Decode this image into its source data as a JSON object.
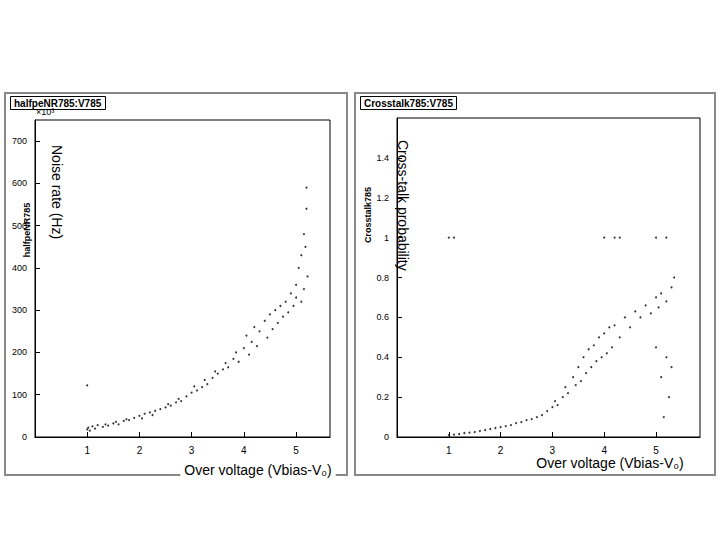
{
  "chart_data": [
    {
      "type": "scatter",
      "title": "halfpeNR785:V785",
      "ylabel": "halfpeNR785",
      "annotations": [
        "×10³",
        "Noise rate (Hz)",
        "Over voltage (Vbias-V₀)"
      ],
      "color": "#000000",
      "marker": "dot",
      "grid": false,
      "xlim": [
        0,
        5.65
      ],
      "xticks": [
        1,
        2,
        3,
        4,
        5
      ],
      "ylim": [
        0,
        750
      ],
      "yticks": [
        0,
        100,
        200,
        300,
        400,
        500,
        600,
        700
      ],
      "x": [
        1.0,
        1.02,
        1.05,
        1.1,
        1.15,
        1.2,
        1.3,
        1.35,
        1.4,
        1.5,
        1.55,
        1.6,
        1.7,
        1.75,
        1.8,
        1.9,
        2.0,
        2.05,
        2.1,
        2.2,
        2.25,
        2.3,
        2.4,
        2.5,
        2.55,
        2.6,
        2.7,
        2.75,
        2.8,
        2.9,
        3.0,
        3.05,
        3.1,
        3.2,
        3.25,
        3.3,
        3.4,
        3.45,
        3.5,
        3.6,
        3.65,
        3.7,
        3.8,
        3.85,
        3.9,
        4.0,
        4.05,
        4.1,
        4.15,
        4.2,
        4.25,
        4.3,
        4.4,
        4.45,
        4.5,
        4.55,
        4.6,
        4.65,
        4.7,
        4.75,
        4.8,
        4.85,
        4.9,
        4.95,
        5.0,
        5.0,
        5.05,
        5.1,
        5.1,
        5.15,
        5.15,
        5.2,
        5.2,
        5.18,
        5.22,
        1.0
      ],
      "values": [
        18,
        22,
        15,
        25,
        20,
        28,
        24,
        30,
        27,
        32,
        36,
        30,
        38,
        42,
        40,
        45,
        50,
        44,
        55,
        58,
        52,
        62,
        66,
        70,
        78,
        74,
        82,
        90,
        85,
        96,
        105,
        120,
        110,
        118,
        135,
        125,
        140,
        155,
        150,
        160,
        175,
        165,
        185,
        200,
        178,
        210,
        240,
        195,
        225,
        260,
        215,
        250,
        275,
        235,
        290,
        255,
        300,
        270,
        310,
        285,
        320,
        295,
        340,
        310,
        330,
        360,
        400,
        320,
        430,
        350,
        480,
        540,
        590,
        450,
        380,
        122
      ]
    },
    {
      "type": "scatter",
      "title": "Crosstalk785:V785",
      "ylabel": "Crosstalk785",
      "annotations": [
        "Cross-talk probability",
        "Over voltage (Vbias-V₀)"
      ],
      "color": "#000000",
      "marker": "dot",
      "grid": false,
      "xlim": [
        0,
        5.85
      ],
      "xticks": [
        1,
        2,
        3,
        4,
        5
      ],
      "ylim": [
        0,
        1.6
      ],
      "yticks": [
        0,
        0.2,
        0.4,
        0.6,
        0.8,
        1,
        1.2,
        1.4
      ],
      "x": [
        1.0,
        1.1,
        1.2,
        1.3,
        1.4,
        1.5,
        1.6,
        1.7,
        1.8,
        1.9,
        2.0,
        2.1,
        2.2,
        2.3,
        2.4,
        2.5,
        2.6,
        2.7,
        2.8,
        2.9,
        3.0,
        3.05,
        3.1,
        3.2,
        3.25,
        3.3,
        3.4,
        3.45,
        3.5,
        3.55,
        3.6,
        3.65,
        3.7,
        3.75,
        3.8,
        3.85,
        3.9,
        3.95,
        4.0,
        4.05,
        4.1,
        4.15,
        4.2,
        4.3,
        4.4,
        4.5,
        4.6,
        4.7,
        4.8,
        4.9,
        5.0,
        5.05,
        5.1,
        5.2,
        5.3,
        5.35,
        5.2,
        5.1,
        5.25,
        5.15,
        1.0,
        1.1,
        4.0,
        4.2,
        4.3,
        5.0,
        5.2,
        5.0,
        5.3
      ],
      "values": [
        0.01,
        0.012,
        0.015,
        0.02,
        0.022,
        0.025,
        0.03,
        0.035,
        0.04,
        0.045,
        0.05,
        0.055,
        0.06,
        0.07,
        0.075,
        0.085,
        0.09,
        0.1,
        0.11,
        0.13,
        0.15,
        0.18,
        0.16,
        0.2,
        0.25,
        0.22,
        0.3,
        0.26,
        0.35,
        0.28,
        0.4,
        0.32,
        0.44,
        0.35,
        0.46,
        0.38,
        0.5,
        0.4,
        0.52,
        0.42,
        0.55,
        0.45,
        0.56,
        0.5,
        0.6,
        0.55,
        0.63,
        0.6,
        0.66,
        0.62,
        0.7,
        0.65,
        0.72,
        0.68,
        0.75,
        0.8,
        0.4,
        0.3,
        0.2,
        0.1,
        1,
        1,
        1,
        1,
        1,
        1,
        1,
        0.45,
        0.35
      ]
    }
  ]
}
